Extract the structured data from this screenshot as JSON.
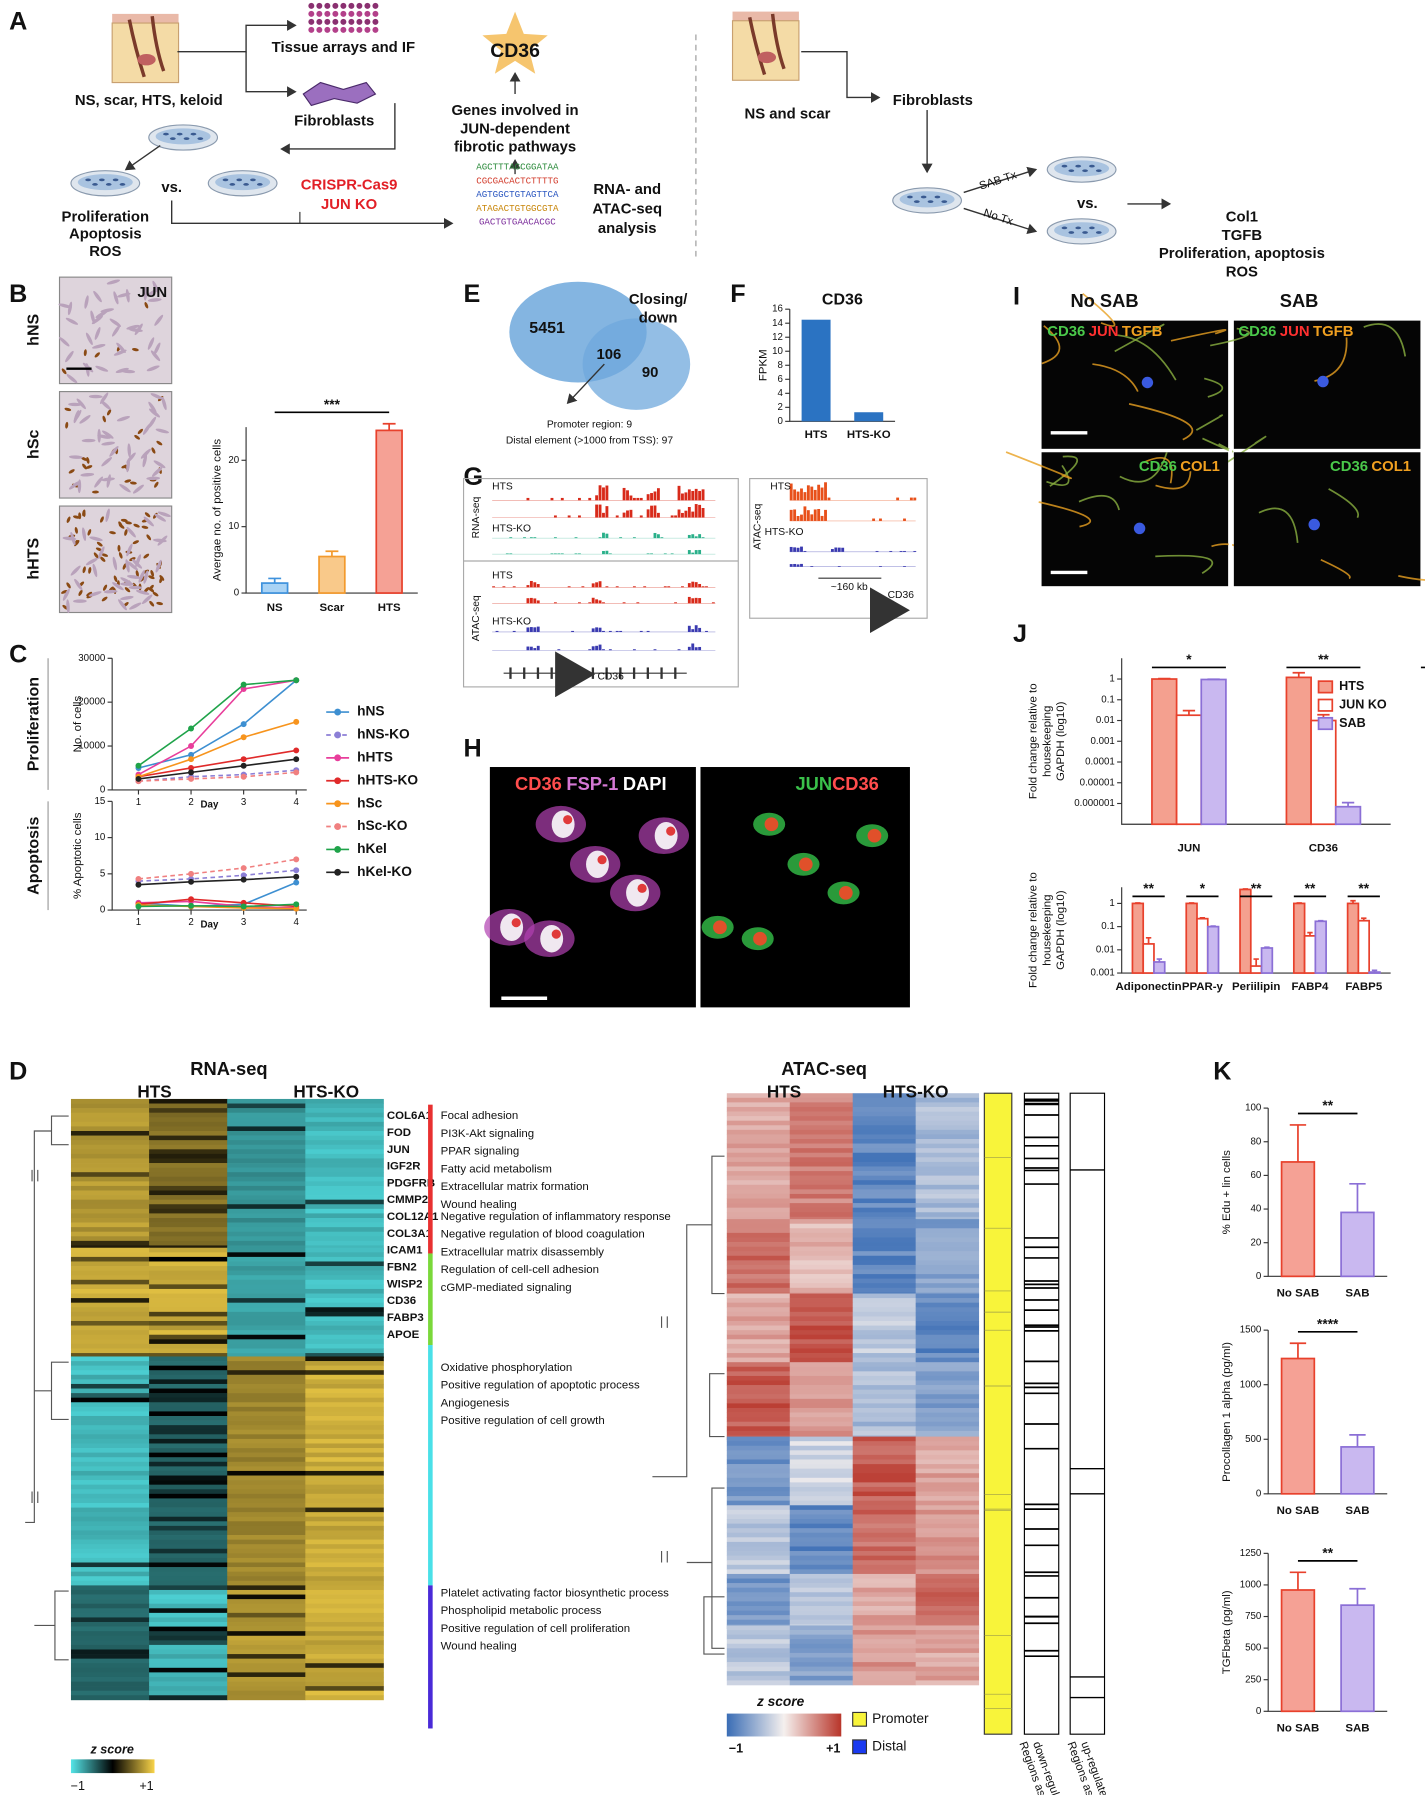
{
  "panels": {
    "a": "A",
    "b": "B",
    "c": "C",
    "d": "D",
    "e": "E",
    "f": "F",
    "g": "G",
    "h": "H",
    "i": "I",
    "j": "J",
    "k": "K"
  },
  "a": {
    "samples": "NS, scar, HTS, keloid",
    "tissue": "Tissue arrays and IF",
    "fibroblasts": "Fibroblasts",
    "vs": "vs.",
    "ko": [
      "CRISPR-Cas9",
      "JUN KO"
    ],
    "readouts": [
      "Proliferation",
      "Apoptosis",
      "ROS"
    ],
    "target": "CD36",
    "genes": [
      "Genes involved in",
      "JUN-dependent",
      "fibrotic pathways"
    ],
    "sequences": [
      "AGCTTTAGCGGATAA",
      "CGCGACACTCTTTTG",
      "AGTGGCTGTAGTTCA",
      "ATAGACTGTGGCGTA",
      "GACTGTGAACACGC"
    ],
    "analysis": [
      "RNA- and",
      "ATAC-seq",
      "analysis"
    ],
    "right_samples": "NS and scar",
    "right_fibroblasts": "Fibroblasts",
    "treat": "SAB Tx",
    "untreated": "No Tx",
    "right_vs": "vs.",
    "right_readouts": [
      "Col1",
      "TGFB",
      "Proliferation, apoptosis",
      "ROS"
    ]
  },
  "b": {
    "images": [
      "hNS",
      "hSc",
      "hHTS"
    ],
    "stain": "JUN"
  },
  "d": {
    "rna_title": "RNA-seq",
    "rna_groups": [
      "HTS",
      "HTS-KO"
    ],
    "genes": [
      "COL6A1",
      "FOD",
      "JUN",
      "IGF2R",
      "PDGFRB",
      "CMMP2",
      "COL12A1",
      "COL3A1",
      "ICAM1",
      "FBN2",
      "WISP2",
      "CD36",
      "FABP3",
      "APOE"
    ],
    "pathways": [
      [
        "Focal adhesion",
        "PI3K-Akt signaling",
        "PPAR signaling",
        "Fatty acid metabolism",
        "Extracellular matrix formation",
        "Wound healing"
      ],
      [
        "Negative regulation of inflammatory response",
        "Negative regulation of blood coagulation",
        "Extracellular matrix disassembly",
        "Regulation of cell-cell adhesion",
        "cGMP-mediated signaling"
      ],
      [
        "Oxidative phosphorylation",
        "Positive regulation of apoptotic process",
        "Angiogenesis",
        "Positive regulation of cell growth"
      ],
      [
        "Platelet activating factor biosynthetic process",
        "Phospholipid metabolic process",
        "Positive regulation of cell proliferation",
        "Wound healing"
      ]
    ],
    "zscore": "z score",
    "zmin": "−1",
    "zmax": "+1",
    "atac_title": "ATAC-seq",
    "atac_groups": [
      "HTS",
      "HTS-KO"
    ],
    "atac_zscore": "z score",
    "atac_zmin": "−1",
    "atac_zmax": "+1",
    "region_types": [
      "Promoter",
      "Distal"
    ],
    "columns": [
      [
        "Regions associated with",
        "down-regulated gene"
      ],
      [
        "Regions associated with",
        "up-regulated gene"
      ]
    ]
  },
  "e": {
    "counts": [
      5451,
      106,
      90
    ],
    "set": [
      "Closing/",
      "down"
    ],
    "notes": [
      "Promoter region: 9",
      "Distal element (>1000 from TSS): 97"
    ]
  },
  "g": {
    "rna": "RNA-seq",
    "atac": "ATAC-seq",
    "tracks": [
      "HTS",
      "HTS-KO",
      "HTS",
      "HTS-KO"
    ],
    "gene": "CD36",
    "inset_atac": "ATAC-seq",
    "inset_tracks": [
      "HTS",
      "HTS-KO"
    ],
    "distance": "~160 kb",
    "inset_gene": "CD36"
  },
  "h": {
    "left": [
      "CD36",
      "FSP-1",
      "DAPI"
    ],
    "right": [
      "JUN",
      "CD36"
    ]
  },
  "i": {
    "conditions": [
      "No SAB",
      "SAB"
    ],
    "stains_top": [
      "CD36",
      "JUN",
      "TGFB"
    ],
    "stains_bottom": [
      "CD36",
      "COL1"
    ]
  },
  "chart_data": [
    {
      "type": "bar",
      "ylabel": "Avergae no. of positive cells",
      "categories": [
        "NS",
        "Scar",
        "HTS"
      ],
      "series": [
        {
          "values": [
            1.5,
            5.5,
            24.5
          ],
          "errors": [
            0.7,
            0.8,
            1
          ],
          "colors": [
            "#3f92dd",
            "#f39a2d",
            "#e8412c"
          ],
          "fills": [
            "#a9d3f5",
            "#f9c98a",
            "#f5a195"
          ]
        }
      ],
      "ylim": [
        0,
        25
      ],
      "yticks": [
        0,
        10,
        20
      ],
      "significance": [
        "***"
      ]
    },
    {
      "type": "line",
      "title": "Proliferation",
      "ylabel": "No. of cells",
      "xlabel": "Day",
      "x": [
        1,
        2,
        3,
        4
      ],
      "xlim": [
        0.5,
        4.2
      ],
      "xticks": [
        1,
        2,
        3,
        4
      ],
      "ylim": [
        0,
        30000
      ],
      "yticks": [
        0,
        10000,
        20000,
        30000
      ],
      "series": [
        {
          "name": "hNS",
          "color": "#3d8fd1",
          "dashed": false,
          "values": [
            5000,
            8000,
            15000,
            25000
          ]
        },
        {
          "name": "hNS-KO",
          "color": "#8c7fd6",
          "dashed": true,
          "values": [
            2000,
            3000,
            3500,
            4500
          ]
        },
        {
          "name": "hHTS",
          "color": "#e83e9b",
          "dashed": false,
          "values": [
            3500,
            10000,
            23000,
            25000
          ]
        },
        {
          "name": "hHTS-KO",
          "color": "#e02a2a",
          "dashed": false,
          "values": [
            3000,
            5000,
            7000,
            9000
          ]
        },
        {
          "name": "hSc",
          "color": "#f7941d",
          "dashed": false,
          "values": [
            3000,
            7000,
            12000,
            15500
          ]
        },
        {
          "name": "hSc-KO",
          "color": "#f08080",
          "dashed": true,
          "values": [
            2000,
            2500,
            3000,
            4000
          ]
        },
        {
          "name": "hKel",
          "color": "#1fa34a",
          "dashed": false,
          "values": [
            5500,
            14000,
            24000,
            25000
          ]
        },
        {
          "name": "hKel-KO",
          "color": "#222222",
          "dashed": false,
          "values": [
            2500,
            4000,
            5500,
            7000
          ]
        }
      ]
    },
    {
      "type": "line",
      "title": "Apoptosis",
      "ylabel": "% Apoptotic cells",
      "xlabel": "Day",
      "x": [
        1,
        2,
        3,
        4
      ],
      "xlim": [
        0.5,
        4.2
      ],
      "xticks": [
        1,
        2,
        3,
        4
      ],
      "ylim": [
        0,
        15
      ],
      "yticks": [
        0,
        5,
        10,
        15
      ],
      "series": [
        {
          "color": "#3d8fd1",
          "dashed": false,
          "values": [
            1,
            0.5,
            0.8,
            3.8
          ]
        },
        {
          "color": "#8c7fd6",
          "dashed": true,
          "values": [
            4,
            4.3,
            4.8,
            5.5
          ]
        },
        {
          "color": "#e83e9b",
          "dashed": false,
          "values": [
            1,
            1.2,
            0.5,
            0.3
          ]
        },
        {
          "color": "#e02a2a",
          "dashed": false,
          "values": [
            0.8,
            1.5,
            1,
            0.5
          ]
        },
        {
          "color": "#f7941d",
          "dashed": false,
          "values": [
            0.7,
            0.5,
            0.3,
            0.2
          ]
        },
        {
          "color": "#f08080",
          "dashed": true,
          "values": [
            4.3,
            5,
            5.8,
            7
          ]
        },
        {
          "color": "#1fa34a",
          "dashed": false,
          "values": [
            0.5,
            0.6,
            0.5,
            0.8
          ]
        },
        {
          "color": "#222222",
          "dashed": false,
          "values": [
            3.5,
            3.9,
            4.2,
            4.6
          ]
        }
      ]
    },
    {
      "type": "bar",
      "title": "CD36",
      "ylabel": "FPKM",
      "categories": [
        "HTS",
        "HTS-KO"
      ],
      "series": [
        {
          "color": "#2b73c2",
          "values": [
            14.5,
            1.3
          ]
        }
      ],
      "ylim": [
        0,
        16
      ],
      "yticks": [
        0,
        2,
        4,
        6,
        8,
        10,
        12,
        14,
        16
      ]
    },
    {
      "type": "bar",
      "log": true,
      "ylabel": [
        "Fold change relative to",
        "housekeeping",
        "GAPDH (log10)"
      ],
      "categories": [
        "JUN",
        "CD36"
      ],
      "series": [
        {
          "name": "HTS",
          "color": "#e8412c",
          "fill": "#f4a08f",
          "values": [
            1,
            1.2
          ],
          "errors": [
            0.05,
            0.8
          ]
        },
        {
          "name": "JUN KO",
          "color": "#e8412c",
          "fill": "#ffffff",
          "values": [
            0.018,
            0.01
          ],
          "errors": [
            0.012,
            0.009
          ]
        },
        {
          "name": "SAB",
          "color": "#8b6fd6",
          "fill": "#c9b8f0",
          "values": [
            0.95,
            7e-07
          ],
          "errors": [
            0.03,
            4e-07
          ]
        }
      ],
      "ylim": [
        1e-07,
        10
      ],
      "yticks": [
        1e-06,
        1e-05,
        0.0001,
        0.001,
        0.01,
        0.1,
        1
      ],
      "significance": [
        "*",
        "**",
        "**"
      ]
    },
    {
      "type": "bar",
      "log": true,
      "ylabel": [
        "Fold change relative to",
        "housekeeping",
        "GAPDH (log10)"
      ],
      "categories": [
        "Adiponectin",
        "PPAR-y",
        "Periilipin",
        "FABP4",
        "FABP5"
      ],
      "series": [
        {
          "color": "#e8412c",
          "fill": "#f4a08f",
          "values": [
            1,
            1,
            4,
            1,
            1
          ],
          "errors": [
            0.05,
            0.05,
            0.2,
            0.05,
            0.3
          ]
        },
        {
          "color": "#e8412c",
          "fill": "#ffffff",
          "values": [
            0.018,
            0.22,
            0.002,
            0.04,
            0.18
          ],
          "errors": [
            0.015,
            0.02,
            0.002,
            0.015,
            0.05
          ]
        },
        {
          "color": "#8b6fd6",
          "fill": "#c9b8f0",
          "values": [
            0.003,
            0.1,
            0.012,
            0.17,
            0.0011
          ],
          "errors": [
            0.001,
            0.005,
            0.001,
            0.01,
            0.0002
          ]
        }
      ],
      "ylim": [
        0.001,
        5
      ],
      "yticks": [
        0.001,
        0.01,
        0.1,
        1
      ],
      "significance": [
        "**",
        "*",
        "**",
        "**",
        "**"
      ]
    },
    {
      "type": "bar",
      "ylabel": "% Edu + lin cells",
      "categories": [
        "No SAB",
        "SAB"
      ],
      "series": [
        {
          "values": [
            68,
            38
          ],
          "errors": [
            22,
            17
          ],
          "colors": [
            "#e8412c",
            "#8b6fd6"
          ],
          "fills": [
            "#f5a195",
            "#c9b8f0"
          ]
        }
      ],
      "ylim": [
        0,
        100
      ],
      "yticks": [
        0,
        20,
        40,
        60,
        80,
        100
      ],
      "significance": [
        "**"
      ]
    },
    {
      "type": "bar",
      "ylabel": "Procollagen 1 alpha (pg/ml)",
      "categories": [
        "No SAB",
        "SAB"
      ],
      "series": [
        {
          "values": [
            1240,
            430
          ],
          "errors": [
            140,
            110
          ],
          "colors": [
            "#e8412c",
            "#8b6fd6"
          ],
          "fills": [
            "#f5a195",
            "#c9b8f0"
          ]
        }
      ],
      "ylim": [
        0,
        1500
      ],
      "yticks": [
        0,
        500,
        1000,
        1500
      ],
      "significance": [
        "****"
      ]
    },
    {
      "type": "bar",
      "ylabel": "TGFbeta (pg/ml)",
      "categories": [
        "No SAB",
        "SAB"
      ],
      "series": [
        {
          "values": [
            960,
            840
          ],
          "errors": [
            140,
            130
          ],
          "colors": [
            "#e8412c",
            "#8b6fd6"
          ],
          "fills": [
            "#f5a195",
            "#c9b8f0"
          ]
        }
      ],
      "ylim": [
        0,
        1250
      ],
      "yticks": [
        0,
        250,
        500,
        750,
        1000,
        1250
      ],
      "significance": [
        "**"
      ]
    }
  ]
}
